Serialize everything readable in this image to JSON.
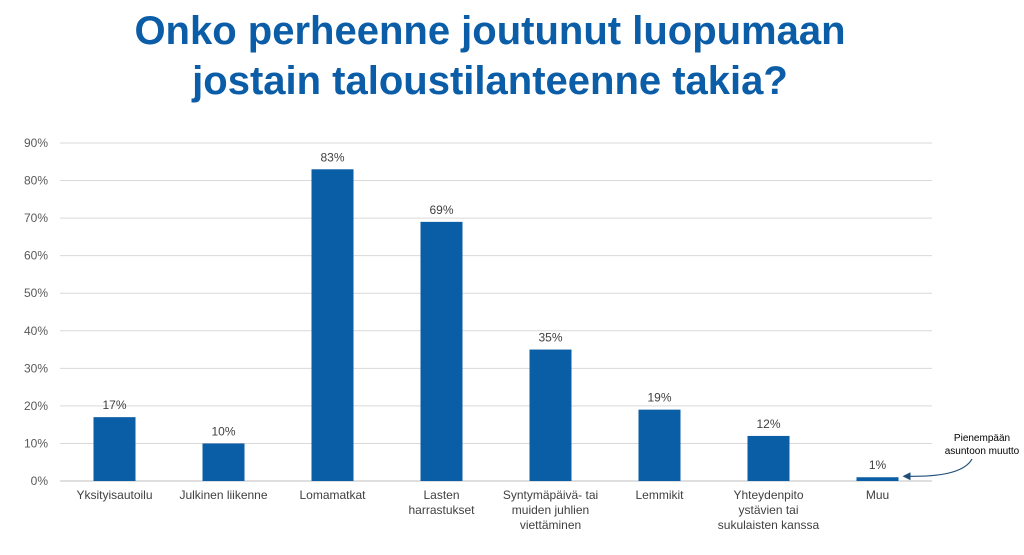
{
  "title": {
    "line1": "Onko perheenne joutunut luopumaan",
    "line2": "jostain taloustilanteenne takia?"
  },
  "colors": {
    "bar": "#0a5ea5",
    "title": "#0a5da6",
    "grid": "#d9d9d9"
  },
  "chart_data": {
    "type": "bar",
    "categories": [
      [
        "Yksityisautoilu"
      ],
      [
        "Julkinen liikenne"
      ],
      [
        "Lomamatkat"
      ],
      [
        "Lasten",
        "harrastukset"
      ],
      [
        "Syntymäpäivä- tai",
        "muiden juhlien",
        "viettäminen"
      ],
      [
        "Lemmikit"
      ],
      [
        "Yhteydenpito",
        "ystävien tai",
        "sukulaisten kanssa"
      ],
      [
        "Muu"
      ]
    ],
    "values": [
      17,
      10,
      83,
      69,
      35,
      19,
      12,
      1
    ],
    "data_labels": [
      "17%",
      "10%",
      "83%",
      "69%",
      "35%",
      "19%",
      "12%",
      "1%"
    ],
    "ylim": [
      0,
      90
    ],
    "yticks": [
      "0%",
      "10%",
      "20%",
      "30%",
      "40%",
      "50%",
      "60%",
      "70%",
      "80%",
      "90%"
    ],
    "grid": true,
    "annotation": {
      "lines": [
        "Pienempään",
        "asuntoon muutto"
      ],
      "target_category": "Muu"
    }
  }
}
